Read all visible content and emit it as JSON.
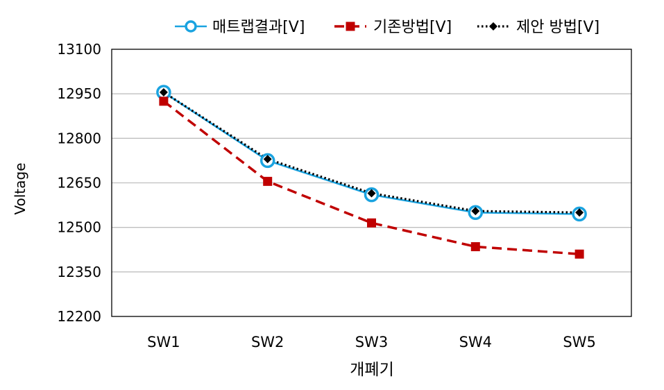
{
  "chart_data": {
    "type": "line",
    "title": "",
    "xlabel": "개폐기",
    "ylabel": "Voltage",
    "categories": [
      "SW1",
      "SW2",
      "SW3",
      "SW4",
      "SW5"
    ],
    "ylim": [
      12200,
      13100
    ],
    "yticks": [
      12200,
      12350,
      12500,
      12650,
      12800,
      12950,
      13100
    ],
    "grid": true,
    "legend_position": "top",
    "series": [
      {
        "name": "매트랩결과[V]",
        "values": [
          12955,
          12725,
          12610,
          12550,
          12545
        ],
        "color": "#1aa3e0",
        "style": "solid",
        "marker": "circle"
      },
      {
        "name": "기존방법[V]",
        "values": [
          12925,
          12655,
          12515,
          12435,
          12410
        ],
        "color": "#c00000",
        "style": "dashed",
        "marker": "square"
      },
      {
        "name": "제안 방법[V]",
        "values": [
          12955,
          12730,
          12615,
          12555,
          12550
        ],
        "color": "#000000",
        "style": "dotted",
        "marker": "diamond"
      }
    ]
  }
}
